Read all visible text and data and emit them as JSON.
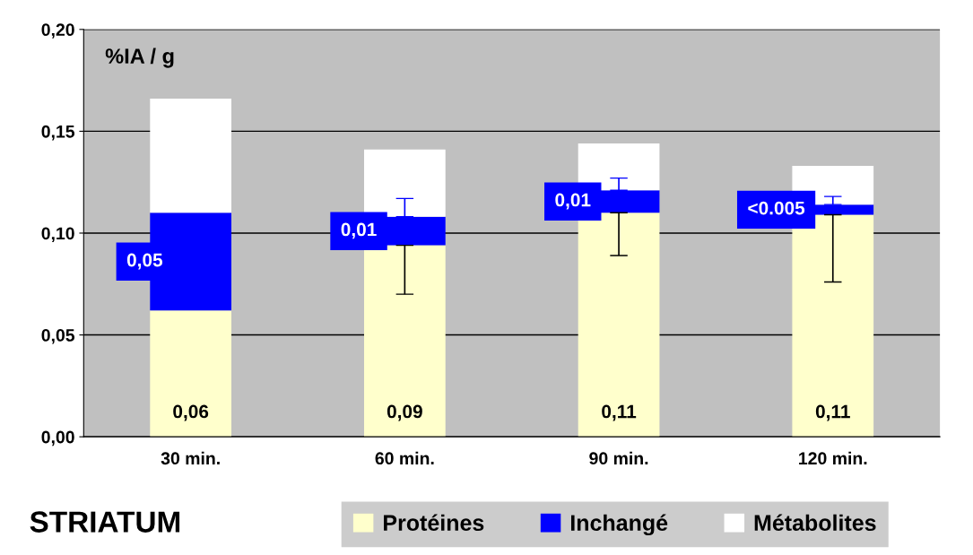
{
  "chart_data": {
    "type": "bar",
    "stacked": true,
    "title": "STRIATUM",
    "ylabel": "%IA / g",
    "categories": [
      "30 min.",
      "60 min.",
      "90 min.",
      "120 min."
    ],
    "series": [
      {
        "name": "Protéines",
        "color": "#ffffcc",
        "values": [
          0.062,
          0.094,
          0.11,
          0.109
        ],
        "value_labels": [
          "0,06",
          "0,09",
          "0,11",
          "0,11"
        ],
        "errors": [
          null,
          [
            0.07,
            0.094
          ],
          [
            0.089,
            0.11
          ],
          [
            0.076,
            0.109
          ]
        ]
      },
      {
        "name": "Inchangé",
        "color": "#0000ff",
        "values": [
          0.048,
          0.014,
          0.011,
          0.005
        ],
        "value_labels": [
          "0,05",
          "0,01",
          "0,01",
          "<0.005"
        ],
        "errors": [
          null,
          [
            0.108,
            0.117
          ],
          [
            0.121,
            0.127
          ],
          [
            0.114,
            0.118
          ]
        ]
      },
      {
        "name": "Métabolites",
        "color": "#ffffff",
        "values": [
          0.056,
          0.033,
          0.023,
          0.019
        ]
      }
    ],
    "ylim": [
      0,
      0.2
    ],
    "yticks": [
      {
        "value": 0,
        "label": "0,00"
      },
      {
        "value": 0.05,
        "label": "0,05"
      },
      {
        "value": 0.1,
        "label": "0,10"
      },
      {
        "value": 0.15,
        "label": "0,15"
      },
      {
        "value": 0.2,
        "label": "0,20"
      }
    ],
    "grid": "y",
    "legend": "bottom"
  }
}
